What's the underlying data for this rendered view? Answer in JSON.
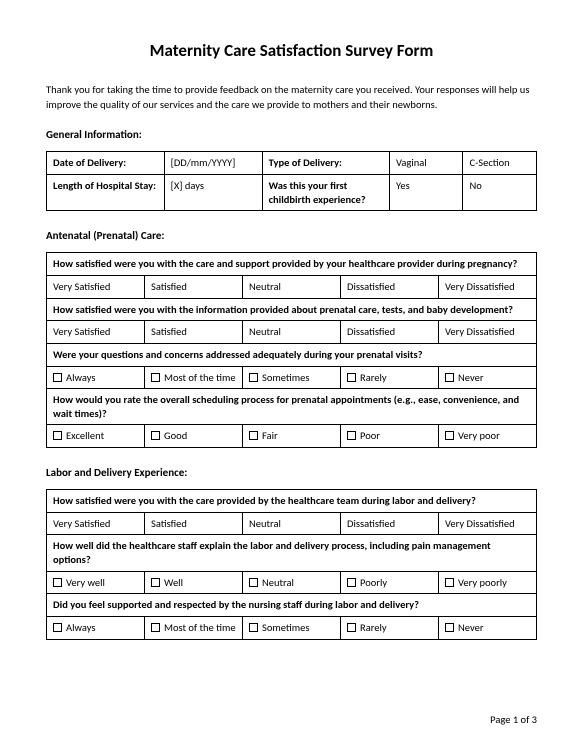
{
  "title": "Maternity Care Satisfaction Survey Form",
  "intro": "Thank you for taking the time to provide feedback on the maternity care you received. Your responses will help us improve the quality of our services and the care we provide to mothers and their newborns.",
  "general": {
    "heading": "General Information:",
    "rows": [
      {
        "c1": "Date of Delivery:",
        "c2": "[DD/mm/YYYY]",
        "c3": "Type of Delivery:",
        "c4": "Vaginal",
        "c5": "C-Section"
      },
      {
        "c1": "Length of Hospital Stay:",
        "c2": "[X] days",
        "c3": "Was this your first childbirth experience?",
        "c4": "Yes",
        "c5": "No"
      }
    ]
  },
  "antenatal": {
    "heading": "Antenatal (Prenatal) Care:",
    "q1": "How satisfied were you with the care and support provided by your healthcare provider during pregnancy?",
    "q1_opts": [
      "Very Satisfied",
      "Satisfied",
      "Neutral",
      "Dissatisfied",
      "Very Dissatisfied"
    ],
    "q2": "How satisfied were you with the information provided about prenatal care, tests, and baby development?",
    "q2_opts": [
      "Very Satisfied",
      "Satisfied",
      "Neutral",
      "Dissatisfied",
      "Very Dissatisfied"
    ],
    "q3": "Were your questions and concerns addressed adequately during your prenatal visits?",
    "q3_opts": [
      "Always",
      "Most of the time",
      "Sometimes",
      "Rarely",
      "Never"
    ],
    "q4": "How would you rate the overall scheduling process for prenatal appointments (e.g., ease, convenience, and wait times)?",
    "q4_opts": [
      "Excellent",
      "Good",
      "Fair",
      "Poor",
      "Very poor"
    ]
  },
  "labor": {
    "heading": "Labor and Delivery Experience:",
    "q1": "How satisfied were you with the care provided by the healthcare team during labor and delivery?",
    "q1_opts": [
      "Very Satisfied",
      "Satisfied",
      "Neutral",
      "Dissatisfied",
      "Very Dissatisfied"
    ],
    "q2": "How well did the healthcare staff explain the labor and delivery process, including pain management options?",
    "q2_opts": [
      "Very well",
      "Well",
      "Neutral",
      "Poorly",
      "Very poorly"
    ],
    "q3": "Did you feel supported and respected by the nursing staff during labor and delivery?",
    "q3_opts": [
      "Always",
      "Most of the time",
      "Sometimes",
      "Rarely",
      "Never"
    ]
  },
  "footer": "Page 1 of 3"
}
